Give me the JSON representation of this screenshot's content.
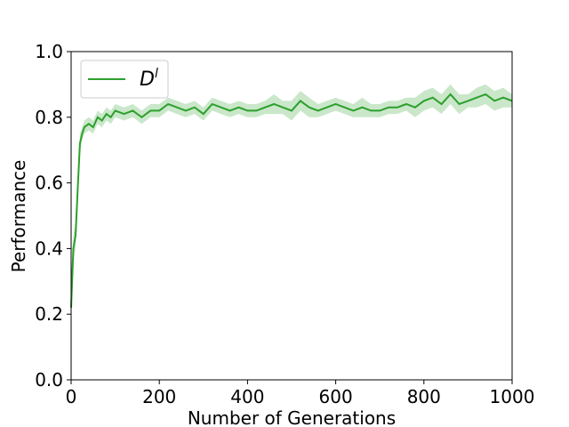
{
  "chart_data": {
    "type": "line",
    "title": "",
    "xlabel": "Number of Generations",
    "ylabel": "Performance",
    "xlim": [
      0,
      1000
    ],
    "ylim": [
      0.0,
      1.0
    ],
    "xticks": [
      0,
      200,
      400,
      600,
      800,
      1000
    ],
    "yticks": [
      0.0,
      0.2,
      0.4,
      0.6,
      0.8,
      1.0
    ],
    "xtick_labels": [
      "0",
      "200",
      "400",
      "600",
      "800",
      "1000"
    ],
    "ytick_labels": [
      "0.0",
      "0.2",
      "0.4",
      "0.6",
      "0.8",
      "1.0"
    ],
    "grid": false,
    "legend_position": "top-left",
    "series": [
      {
        "name": "D^l",
        "color": "#2ca02c",
        "band_color": "#2ca02c",
        "x": [
          0,
          5,
          10,
          15,
          20,
          25,
          30,
          40,
          50,
          60,
          70,
          80,
          90,
          100,
          120,
          140,
          160,
          180,
          200,
          220,
          240,
          260,
          280,
          300,
          320,
          340,
          360,
          380,
          400,
          420,
          440,
          460,
          480,
          500,
          520,
          540,
          560,
          580,
          600,
          620,
          640,
          660,
          680,
          700,
          720,
          740,
          760,
          780,
          800,
          820,
          840,
          860,
          880,
          900,
          920,
          940,
          960,
          980,
          1000
        ],
        "y": [
          0.22,
          0.4,
          0.44,
          0.58,
          0.72,
          0.75,
          0.77,
          0.78,
          0.77,
          0.8,
          0.79,
          0.81,
          0.8,
          0.82,
          0.81,
          0.82,
          0.8,
          0.82,
          0.82,
          0.84,
          0.83,
          0.82,
          0.83,
          0.81,
          0.84,
          0.83,
          0.82,
          0.83,
          0.82,
          0.82,
          0.83,
          0.84,
          0.83,
          0.82,
          0.85,
          0.83,
          0.82,
          0.83,
          0.84,
          0.83,
          0.82,
          0.83,
          0.82,
          0.82,
          0.83,
          0.83,
          0.84,
          0.83,
          0.85,
          0.86,
          0.84,
          0.87,
          0.84,
          0.85,
          0.86,
          0.87,
          0.85,
          0.86,
          0.85
        ],
        "band": [
          0.03,
          0.04,
          0.04,
          0.04,
          0.03,
          0.02,
          0.02,
          0.02,
          0.02,
          0.02,
          0.02,
          0.02,
          0.02,
          0.02,
          0.02,
          0.02,
          0.02,
          0.02,
          0.02,
          0.02,
          0.02,
          0.02,
          0.02,
          0.02,
          0.02,
          0.02,
          0.02,
          0.02,
          0.02,
          0.02,
          0.02,
          0.03,
          0.02,
          0.03,
          0.03,
          0.03,
          0.02,
          0.02,
          0.02,
          0.02,
          0.02,
          0.03,
          0.02,
          0.02,
          0.02,
          0.02,
          0.02,
          0.03,
          0.03,
          0.03,
          0.03,
          0.03,
          0.03,
          0.02,
          0.03,
          0.03,
          0.03,
          0.03,
          0.02
        ]
      }
    ]
  },
  "legend": {
    "label_base": "D",
    "label_sup": "l"
  }
}
